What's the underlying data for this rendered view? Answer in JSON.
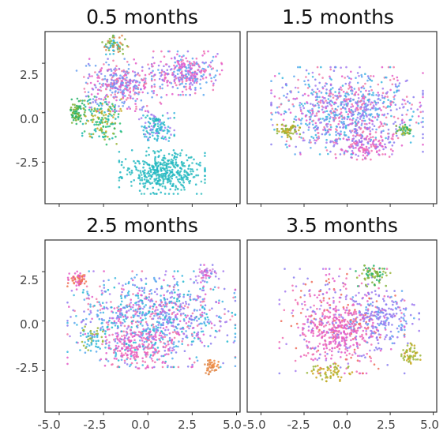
{
  "chart_data": [
    {
      "type": "scatter",
      "title": "0.5 months",
      "xlim": [
        -5.8,
        5.2
      ],
      "ylim": [
        -4.6,
        4.1
      ],
      "x_ticks": [
        "-5.0",
        "-2.5",
        "0.0",
        "2.5",
        "5.0"
      ],
      "y_ticks": [
        "2.5",
        "0.0",
        "-2.5"
      ],
      "clusters": [
        {
          "cx": 0.8,
          "cy": -3.0,
          "rx": 2.2,
          "ry": 1.0,
          "n": 420,
          "colors": [
            "#22b8bf",
            "#1fb6c4",
            "#38c0c0"
          ]
        },
        {
          "cx": -1.6,
          "cy": 1.4,
          "rx": 2.2,
          "ry": 1.2,
          "n": 360,
          "colors": [
            "#8a7cf0",
            "#e45ac8",
            "#6aa0f0",
            "#f07aa8"
          ]
        },
        {
          "cx": 2.2,
          "cy": 2.0,
          "rx": 1.8,
          "ry": 1.0,
          "n": 300,
          "colors": [
            "#f06fb0",
            "#9a76f0",
            "#e55dcd",
            "#5aa8f0"
          ]
        },
        {
          "cx": -2.6,
          "cy": -0.4,
          "rx": 1.0,
          "ry": 1.1,
          "n": 160,
          "colors": [
            "#2fbf6f",
            "#9ab63a",
            "#c9a820",
            "#20b8b0"
          ]
        },
        {
          "cx": -4.0,
          "cy": 0.0,
          "rx": 0.4,
          "ry": 0.7,
          "n": 80,
          "colors": [
            "#27b36a",
            "#7fb33a"
          ]
        },
        {
          "cx": -1.8,
          "cy": 3.4,
          "rx": 0.7,
          "ry": 0.45,
          "n": 70,
          "colors": [
            "#30b8d8",
            "#7fb33a",
            "#e0884a"
          ]
        },
        {
          "cx": 0.5,
          "cy": -0.8,
          "rx": 0.9,
          "ry": 0.9,
          "n": 140,
          "colors": [
            "#3db7e0",
            "#22b8bf",
            "#a77ef0"
          ]
        }
      ]
    },
    {
      "type": "scatter",
      "title": "1.5 months",
      "xlim": [
        -5.8,
        5.2
      ],
      "ylim": [
        -4.6,
        4.1
      ],
      "x_ticks": [
        "-5.0",
        "-2.5",
        "0.0",
        "2.5",
        "5.0"
      ],
      "y_ticks": [],
      "clusters": [
        {
          "cx": 0.0,
          "cy": 0.1,
          "rx": 4.0,
          "ry": 2.0,
          "n": 900,
          "colors": [
            "#8a7cf0",
            "#e45ac8",
            "#3db7e0",
            "#f07aa8",
            "#a77ef0",
            "#5aa8f0"
          ]
        },
        {
          "cx": 1.0,
          "cy": -1.6,
          "rx": 1.5,
          "ry": 0.7,
          "n": 160,
          "colors": [
            "#f06fb0",
            "#e45ac8",
            "#9a76f0"
          ]
        },
        {
          "cx": -3.4,
          "cy": -0.9,
          "rx": 0.6,
          "ry": 0.4,
          "n": 60,
          "colors": [
            "#9ab63a",
            "#c9a820",
            "#7fb33a"
          ]
        },
        {
          "cx": 3.4,
          "cy": -0.9,
          "rx": 0.5,
          "ry": 0.3,
          "n": 40,
          "colors": [
            "#27b36a",
            "#9ab63a"
          ]
        }
      ]
    },
    {
      "type": "scatter",
      "title": "2.5 months",
      "xlim": [
        -5.8,
        5.2
      ],
      "ylim": [
        -4.6,
        4.1
      ],
      "x_ticks": [
        "-5.0",
        "-2.5",
        "0.0",
        "2.5",
        "5.0"
      ],
      "y_ticks": [
        "2.5",
        "0.0",
        "-2.5"
      ],
      "clusters": [
        {
          "cx": 0.2,
          "cy": 0.1,
          "rx": 4.3,
          "ry": 2.2,
          "n": 1000,
          "colors": [
            "#8a7cf0",
            "#e45ac8",
            "#3db7e0",
            "#f07aa8",
            "#a77ef0",
            "#22b8d0",
            "#5aa8f0"
          ]
        },
        {
          "cx": -0.6,
          "cy": -1.4,
          "rx": 1.6,
          "ry": 0.9,
          "n": 160,
          "colors": [
            "#f06fb0",
            "#e45ac8"
          ]
        },
        {
          "cx": -4.0,
          "cy": 2.1,
          "rx": 0.5,
          "ry": 0.4,
          "n": 60,
          "colors": [
            "#ef6d5a",
            "#f07a50",
            "#e45ac8"
          ]
        },
        {
          "cx": 3.6,
          "cy": -2.3,
          "rx": 0.4,
          "ry": 0.35,
          "n": 40,
          "colors": [
            "#ef8a40",
            "#e0884a"
          ]
        },
        {
          "cx": 3.3,
          "cy": 2.4,
          "rx": 0.5,
          "ry": 0.4,
          "n": 40,
          "colors": [
            "#c98de0",
            "#e45ac8",
            "#8a7cf0"
          ]
        },
        {
          "cx": -3.2,
          "cy": -0.9,
          "rx": 0.6,
          "ry": 0.6,
          "n": 50,
          "colors": [
            "#9ab63a",
            "#3db7e0"
          ]
        }
      ]
    },
    {
      "type": "scatter",
      "title": "3.5 months",
      "xlim": [
        -5.8,
        5.2
      ],
      "ylim": [
        -4.6,
        4.1
      ],
      "x_ticks": [
        "-5.0",
        "-2.5",
        "0.0",
        "2.5",
        "5.0"
      ],
      "y_ticks": [],
      "clusters": [
        {
          "cx": -0.3,
          "cy": 0.0,
          "rx": 3.3,
          "ry": 2.4,
          "n": 500,
          "colors": [
            "#e45ac8",
            "#f06fb0",
            "#8a7cf0",
            "#ef6d5a",
            "#a77ef0"
          ]
        },
        {
          "cx": -0.6,
          "cy": -0.7,
          "rx": 1.8,
          "ry": 1.2,
          "n": 180,
          "colors": [
            "#f06fb0",
            "#e45ac8"
          ]
        },
        {
          "cx": 2.2,
          "cy": 0.2,
          "rx": 1.8,
          "ry": 1.2,
          "n": 160,
          "colors": [
            "#8a7cf0",
            "#5aa8f0",
            "#9a76f0"
          ]
        },
        {
          "cx": 1.6,
          "cy": 2.3,
          "rx": 1.0,
          "ry": 0.6,
          "n": 70,
          "colors": [
            "#27b36a",
            "#7fb33a",
            "#9ab63a"
          ]
        },
        {
          "cx": -1.0,
          "cy": -2.6,
          "rx": 1.2,
          "ry": 0.4,
          "n": 60,
          "colors": [
            "#c9a820",
            "#9ab63a"
          ]
        },
        {
          "cx": 3.7,
          "cy": -1.6,
          "rx": 0.5,
          "ry": 0.5,
          "n": 50,
          "colors": [
            "#c9a820",
            "#9ab63a"
          ]
        }
      ]
    }
  ]
}
